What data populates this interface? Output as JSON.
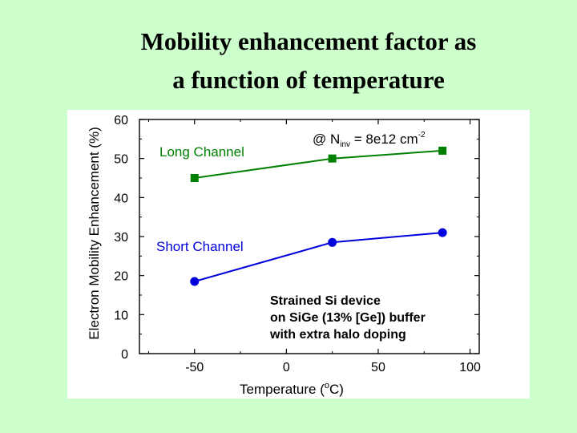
{
  "slide": {
    "title_line1": "Mobility enhancement factor as",
    "title_line2": "a function of temperature"
  },
  "chart_data": {
    "type": "line",
    "x_tick_labels": [
      "-50",
      "0",
      "50",
      "100"
    ],
    "y_tick_labels": [
      "0",
      "10",
      "20",
      "30",
      "40",
      "50",
      "60"
    ],
    "xlim": [
      -80,
      105
    ],
    "ylim": [
      0,
      60
    ],
    "xticks": [
      -50,
      0,
      50,
      100
    ],
    "yticks": [
      0,
      10,
      20,
      30,
      40,
      50,
      60
    ],
    "xlabel": "Temperature (",
    "xlabel_sup": "o",
    "xlabel_end": "C)",
    "ylabel": "Electron Mobility Enhancement (%)",
    "condition_prefix": "@ N",
    "condition_sub": "inv",
    "condition_value": " = 8e12 cm",
    "condition_sup": "-2",
    "annotation_lines": [
      "Strained Si device",
      "on SiGe (13% [Ge]) buffer",
      "with extra halo doping"
    ],
    "series": [
      {
        "name": "Long Channel",
        "color": "#008000",
        "marker": "square",
        "x": [
          -50,
          25,
          85
        ],
        "values": [
          45,
          50,
          52
        ]
      },
      {
        "name": "Short Channel",
        "color": "#0000dd",
        "marker": "circle",
        "x": [
          -50,
          25,
          85
        ],
        "values": [
          18.5,
          28.5,
          31
        ]
      }
    ]
  }
}
